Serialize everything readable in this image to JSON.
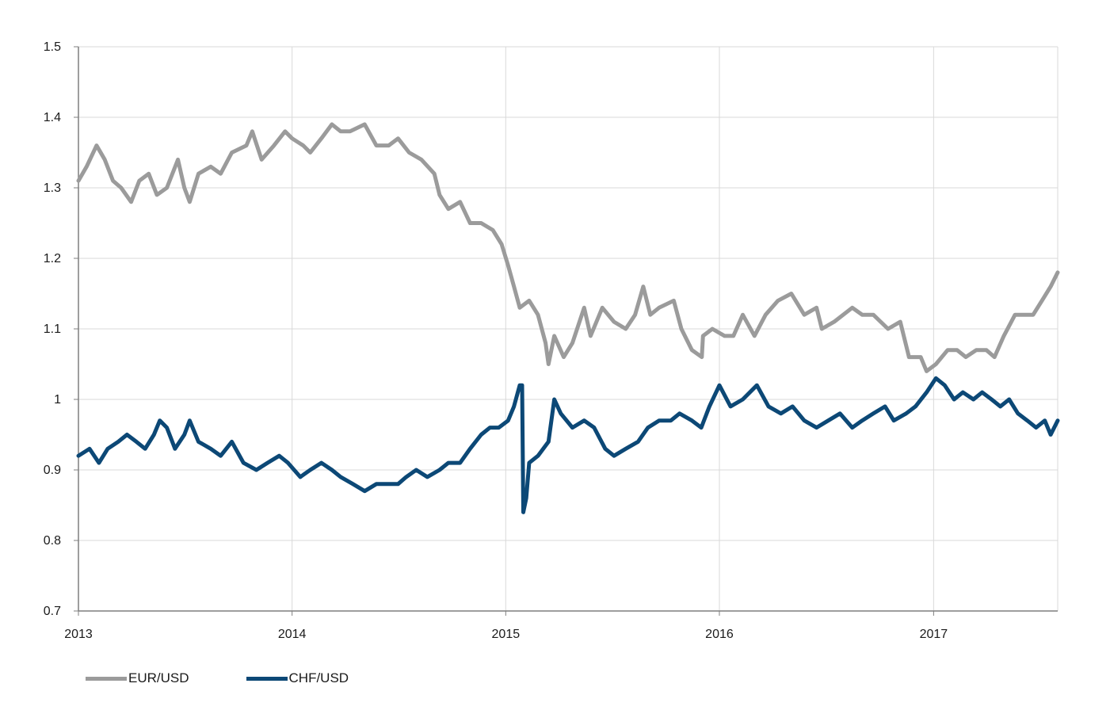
{
  "chart_data": {
    "type": "line",
    "x_unit": "date",
    "xlim": [
      "2013-01-01",
      "2017-08-01"
    ],
    "ylim": [
      0.7,
      1.5
    ],
    "y_ticks": [
      0.7,
      0.8,
      0.9,
      1.0,
      1.1,
      1.2,
      1.3,
      1.4,
      1.5
    ],
    "y_tick_labels": [
      "0.7",
      "0.8",
      "0.9",
      "1",
      "1.1",
      "1.2",
      "1.3",
      "1.4",
      "1.5"
    ],
    "x_ticks": [
      "2013-01-01",
      "2014-01-01",
      "2015-01-01",
      "2016-01-01",
      "2017-01-01"
    ],
    "x_tick_labels": [
      "2013",
      "2014",
      "2015",
      "2016",
      "2017"
    ],
    "grid": true,
    "legend_position": "bottom-left",
    "series": [
      {
        "name": "EUR/USD",
        "color": "#9b9b9b",
        "points": [
          [
            "2013-01-01",
            1.31
          ],
          [
            "2013-01-15",
            1.33
          ],
          [
            "2013-02-01",
            1.36
          ],
          [
            "2013-02-15",
            1.34
          ],
          [
            "2013-03-01",
            1.31
          ],
          [
            "2013-03-15",
            1.3
          ],
          [
            "2013-04-01",
            1.28
          ],
          [
            "2013-04-15",
            1.31
          ],
          [
            "2013-05-01",
            1.32
          ],
          [
            "2013-05-15",
            1.29
          ],
          [
            "2013-06-01",
            1.3
          ],
          [
            "2013-06-20",
            1.34
          ],
          [
            "2013-07-01",
            1.3
          ],
          [
            "2013-07-10",
            1.28
          ],
          [
            "2013-07-25",
            1.32
          ],
          [
            "2013-08-15",
            1.33
          ],
          [
            "2013-09-01",
            1.32
          ],
          [
            "2013-09-20",
            1.35
          ],
          [
            "2013-10-15",
            1.36
          ],
          [
            "2013-10-25",
            1.38
          ],
          [
            "2013-11-10",
            1.34
          ],
          [
            "2013-12-01",
            1.36
          ],
          [
            "2013-12-20",
            1.38
          ],
          [
            "2014-01-01",
            1.37
          ],
          [
            "2014-01-20",
            1.36
          ],
          [
            "2014-02-01",
            1.35
          ],
          [
            "2014-02-20",
            1.37
          ],
          [
            "2014-03-10",
            1.39
          ],
          [
            "2014-03-25",
            1.38
          ],
          [
            "2014-04-10",
            1.38
          ],
          [
            "2014-05-05",
            1.39
          ],
          [
            "2014-05-25",
            1.36
          ],
          [
            "2014-06-15",
            1.36
          ],
          [
            "2014-07-01",
            1.37
          ],
          [
            "2014-07-20",
            1.35
          ],
          [
            "2014-08-10",
            1.34
          ],
          [
            "2014-09-01",
            1.32
          ],
          [
            "2014-09-10",
            1.29
          ],
          [
            "2014-09-25",
            1.27
          ],
          [
            "2014-10-15",
            1.28
          ],
          [
            "2014-11-01",
            1.25
          ],
          [
            "2014-11-20",
            1.25
          ],
          [
            "2014-12-10",
            1.24
          ],
          [
            "2014-12-25",
            1.22
          ],
          [
            "2015-01-05",
            1.19
          ],
          [
            "2015-01-15",
            1.16
          ],
          [
            "2015-01-25",
            1.13
          ],
          [
            "2015-02-10",
            1.14
          ],
          [
            "2015-02-25",
            1.12
          ],
          [
            "2015-03-10",
            1.08
          ],
          [
            "2015-03-15",
            1.05
          ],
          [
            "2015-03-25",
            1.09
          ],
          [
            "2015-04-10",
            1.06
          ],
          [
            "2015-04-25",
            1.08
          ],
          [
            "2015-05-15",
            1.13
          ],
          [
            "2015-05-26",
            1.09
          ],
          [
            "2015-06-15",
            1.13
          ],
          [
            "2015-07-05",
            1.11
          ],
          [
            "2015-07-25",
            1.1
          ],
          [
            "2015-08-10",
            1.12
          ],
          [
            "2015-08-24",
            1.16
          ],
          [
            "2015-09-05",
            1.12
          ],
          [
            "2015-09-20",
            1.13
          ],
          [
            "2015-10-15",
            1.14
          ],
          [
            "2015-10-28",
            1.1
          ],
          [
            "2015-11-15",
            1.07
          ],
          [
            "2015-12-02",
            1.06
          ],
          [
            "2015-12-04",
            1.09
          ],
          [
            "2015-12-20",
            1.1
          ],
          [
            "2016-01-10",
            1.09
          ],
          [
            "2016-01-25",
            1.09
          ],
          [
            "2016-02-10",
            1.12
          ],
          [
            "2016-03-01",
            1.09
          ],
          [
            "2016-03-20",
            1.12
          ],
          [
            "2016-04-10",
            1.14
          ],
          [
            "2016-05-03",
            1.15
          ],
          [
            "2016-05-25",
            1.12
          ],
          [
            "2016-06-15",
            1.13
          ],
          [
            "2016-06-24",
            1.1
          ],
          [
            "2016-07-15",
            1.11
          ],
          [
            "2016-08-15",
            1.13
          ],
          [
            "2016-09-01",
            1.12
          ],
          [
            "2016-09-20",
            1.12
          ],
          [
            "2016-10-15",
            1.1
          ],
          [
            "2016-11-05",
            1.11
          ],
          [
            "2016-11-20",
            1.06
          ],
          [
            "2016-12-10",
            1.06
          ],
          [
            "2016-12-20",
            1.04
          ],
          [
            "2017-01-05",
            1.05
          ],
          [
            "2017-01-25",
            1.07
          ],
          [
            "2017-02-10",
            1.07
          ],
          [
            "2017-02-25",
            1.06
          ],
          [
            "2017-03-15",
            1.07
          ],
          [
            "2017-04-01",
            1.07
          ],
          [
            "2017-04-15",
            1.06
          ],
          [
            "2017-05-01",
            1.09
          ],
          [
            "2017-05-20",
            1.12
          ],
          [
            "2017-06-05",
            1.12
          ],
          [
            "2017-06-20",
            1.12
          ],
          [
            "2017-07-05",
            1.14
          ],
          [
            "2017-07-20",
            1.16
          ],
          [
            "2017-08-01",
            1.18
          ]
        ]
      },
      {
        "name": "CHF/USD",
        "color": "#0c4876",
        "points": [
          [
            "2013-01-01",
            0.92
          ],
          [
            "2013-01-20",
            0.93
          ],
          [
            "2013-02-05",
            0.91
          ],
          [
            "2013-02-20",
            0.93
          ],
          [
            "2013-03-10",
            0.94
          ],
          [
            "2013-03-25",
            0.95
          ],
          [
            "2013-04-10",
            0.94
          ],
          [
            "2013-04-25",
            0.93
          ],
          [
            "2013-05-10",
            0.95
          ],
          [
            "2013-05-20",
            0.97
          ],
          [
            "2013-06-01",
            0.96
          ],
          [
            "2013-06-15",
            0.93
          ],
          [
            "2013-07-01",
            0.95
          ],
          [
            "2013-07-10",
            0.97
          ],
          [
            "2013-07-25",
            0.94
          ],
          [
            "2013-08-15",
            0.93
          ],
          [
            "2013-09-01",
            0.92
          ],
          [
            "2013-09-20",
            0.94
          ],
          [
            "2013-10-10",
            0.91
          ],
          [
            "2013-11-01",
            0.9
          ],
          [
            "2013-11-20",
            0.91
          ],
          [
            "2013-12-10",
            0.92
          ],
          [
            "2013-12-25",
            0.91
          ],
          [
            "2014-01-15",
            0.89
          ],
          [
            "2014-02-01",
            0.9
          ],
          [
            "2014-02-20",
            0.91
          ],
          [
            "2014-03-10",
            0.9
          ],
          [
            "2014-03-25",
            0.89
          ],
          [
            "2014-04-15",
            0.88
          ],
          [
            "2014-05-05",
            0.87
          ],
          [
            "2014-05-25",
            0.88
          ],
          [
            "2014-06-15",
            0.88
          ],
          [
            "2014-07-01",
            0.88
          ],
          [
            "2014-07-15",
            0.89
          ],
          [
            "2014-08-01",
            0.9
          ],
          [
            "2014-08-20",
            0.89
          ],
          [
            "2014-09-10",
            0.9
          ],
          [
            "2014-09-25",
            0.91
          ],
          [
            "2014-10-15",
            0.91
          ],
          [
            "2014-11-01",
            0.93
          ],
          [
            "2014-11-20",
            0.95
          ],
          [
            "2014-12-05",
            0.96
          ],
          [
            "2014-12-20",
            0.96
          ],
          [
            "2015-01-05",
            0.97
          ],
          [
            "2015-01-15",
            0.99
          ],
          [
            "2015-01-25",
            1.02
          ],
          [
            "2015-01-29",
            1.02
          ],
          [
            "2015-01-31",
            0.84
          ],
          [
            "2015-02-05",
            0.86
          ],
          [
            "2015-02-10",
            0.91
          ],
          [
            "2015-02-25",
            0.92
          ],
          [
            "2015-03-15",
            0.94
          ],
          [
            "2015-03-25",
            1.0
          ],
          [
            "2015-04-05",
            0.98
          ],
          [
            "2015-04-25",
            0.96
          ],
          [
            "2015-05-15",
            0.97
          ],
          [
            "2015-06-01",
            0.96
          ],
          [
            "2015-06-20",
            0.93
          ],
          [
            "2015-07-05",
            0.92
          ],
          [
            "2015-07-25",
            0.93
          ],
          [
            "2015-08-15",
            0.94
          ],
          [
            "2015-09-01",
            0.96
          ],
          [
            "2015-09-20",
            0.97
          ],
          [
            "2015-10-10",
            0.97
          ],
          [
            "2015-10-25",
            0.98
          ],
          [
            "2015-11-15",
            0.97
          ],
          [
            "2015-12-01",
            0.96
          ],
          [
            "2015-12-15",
            0.99
          ],
          [
            "2016-01-01",
            1.02
          ],
          [
            "2016-01-20",
            0.99
          ],
          [
            "2016-02-10",
            1.0
          ],
          [
            "2016-03-05",
            1.02
          ],
          [
            "2016-03-25",
            0.99
          ],
          [
            "2016-04-15",
            0.98
          ],
          [
            "2016-05-05",
            0.99
          ],
          [
            "2016-05-25",
            0.97
          ],
          [
            "2016-06-15",
            0.96
          ],
          [
            "2016-07-05",
            0.97
          ],
          [
            "2016-07-25",
            0.98
          ],
          [
            "2016-08-15",
            0.96
          ],
          [
            "2016-09-01",
            0.97
          ],
          [
            "2016-09-20",
            0.98
          ],
          [
            "2016-10-10",
            0.99
          ],
          [
            "2016-10-25",
            0.97
          ],
          [
            "2016-11-15",
            0.98
          ],
          [
            "2016-12-01",
            0.99
          ],
          [
            "2016-12-20",
            1.01
          ],
          [
            "2017-01-05",
            1.03
          ],
          [
            "2017-01-20",
            1.02
          ],
          [
            "2017-02-05",
            1.0
          ],
          [
            "2017-02-20",
            1.01
          ],
          [
            "2017-03-10",
            1.0
          ],
          [
            "2017-03-25",
            1.01
          ],
          [
            "2017-04-10",
            1.0
          ],
          [
            "2017-04-25",
            0.99
          ],
          [
            "2017-05-10",
            1.0
          ],
          [
            "2017-05-25",
            0.98
          ],
          [
            "2017-06-10",
            0.97
          ],
          [
            "2017-06-25",
            0.96
          ],
          [
            "2017-07-10",
            0.97
          ],
          [
            "2017-07-20",
            0.95
          ],
          [
            "2017-08-01",
            0.97
          ]
        ]
      }
    ]
  }
}
